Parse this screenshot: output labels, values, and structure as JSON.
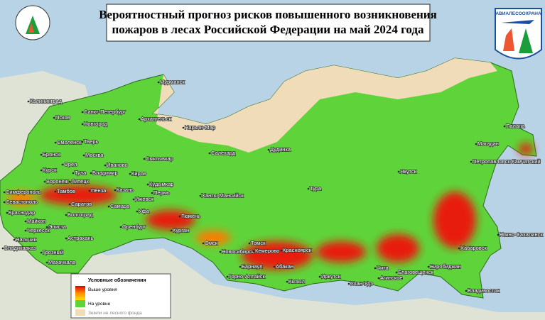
{
  "header": {
    "title_lines": [
      "Вероятностный прогноз рисков повышенного возникновения",
      "пожаров в лесах Российской Федерации на май 2024 года"
    ],
    "logo_text": "АВИАЛЕСООХРАНА"
  },
  "legend": {
    "title": "Условные обозначения",
    "items": [
      {
        "label": "Выше уровня"
      },
      {
        "label": "На уровне"
      },
      {
        "label": "Земли не лесного фонда"
      }
    ]
  },
  "cities": [
    "Мурманск",
    "Калининград",
    "Санкт-Петербург",
    "Архангельск",
    "Нарьян-Мар",
    "Новгород",
    "Псков",
    "Смоленск",
    "Тверь",
    "Сыктывкар",
    "Салехард",
    "Дудинка",
    "Брянск",
    "Москва",
    "Иваново",
    "Курск",
    "Орел",
    "Тула",
    "Владимир",
    "Липецк",
    "Воронеж",
    "Киров",
    "Кудымкар",
    "Пермь",
    "Ижевск",
    "Казань",
    "Тамбов",
    "Пенза",
    "Саратов",
    "Самара",
    "Уфа",
    "Оренбург",
    "Волгоград",
    "Ханты-Мансийск",
    "Тюмень",
    "Курган",
    "Омск",
    "Новосибирск",
    "Томск",
    "Кемерово",
    "Красноярск",
    "Барнаул",
    "Абакан",
    "Горно-Алтайск",
    "Кызыл",
    "Иркутск",
    "Улан-Удэ",
    "Чита",
    "Агинское",
    "Благовещенск",
    "Биробиджан",
    "Хабаровск",
    "Владивосток",
    "Южно-Сахалинск",
    "Якутск",
    "Тура",
    "Магадан",
    "Палана",
    "Петропавловск-Камчатский",
    "Симферополь",
    "Севастополь",
    "Краснодар",
    "Майкоп",
    "Черкесск",
    "Элиста",
    "Астрахань",
    "Нальчик",
    "Грозный",
    "Владикавказ",
    "Махачкала"
  ]
}
